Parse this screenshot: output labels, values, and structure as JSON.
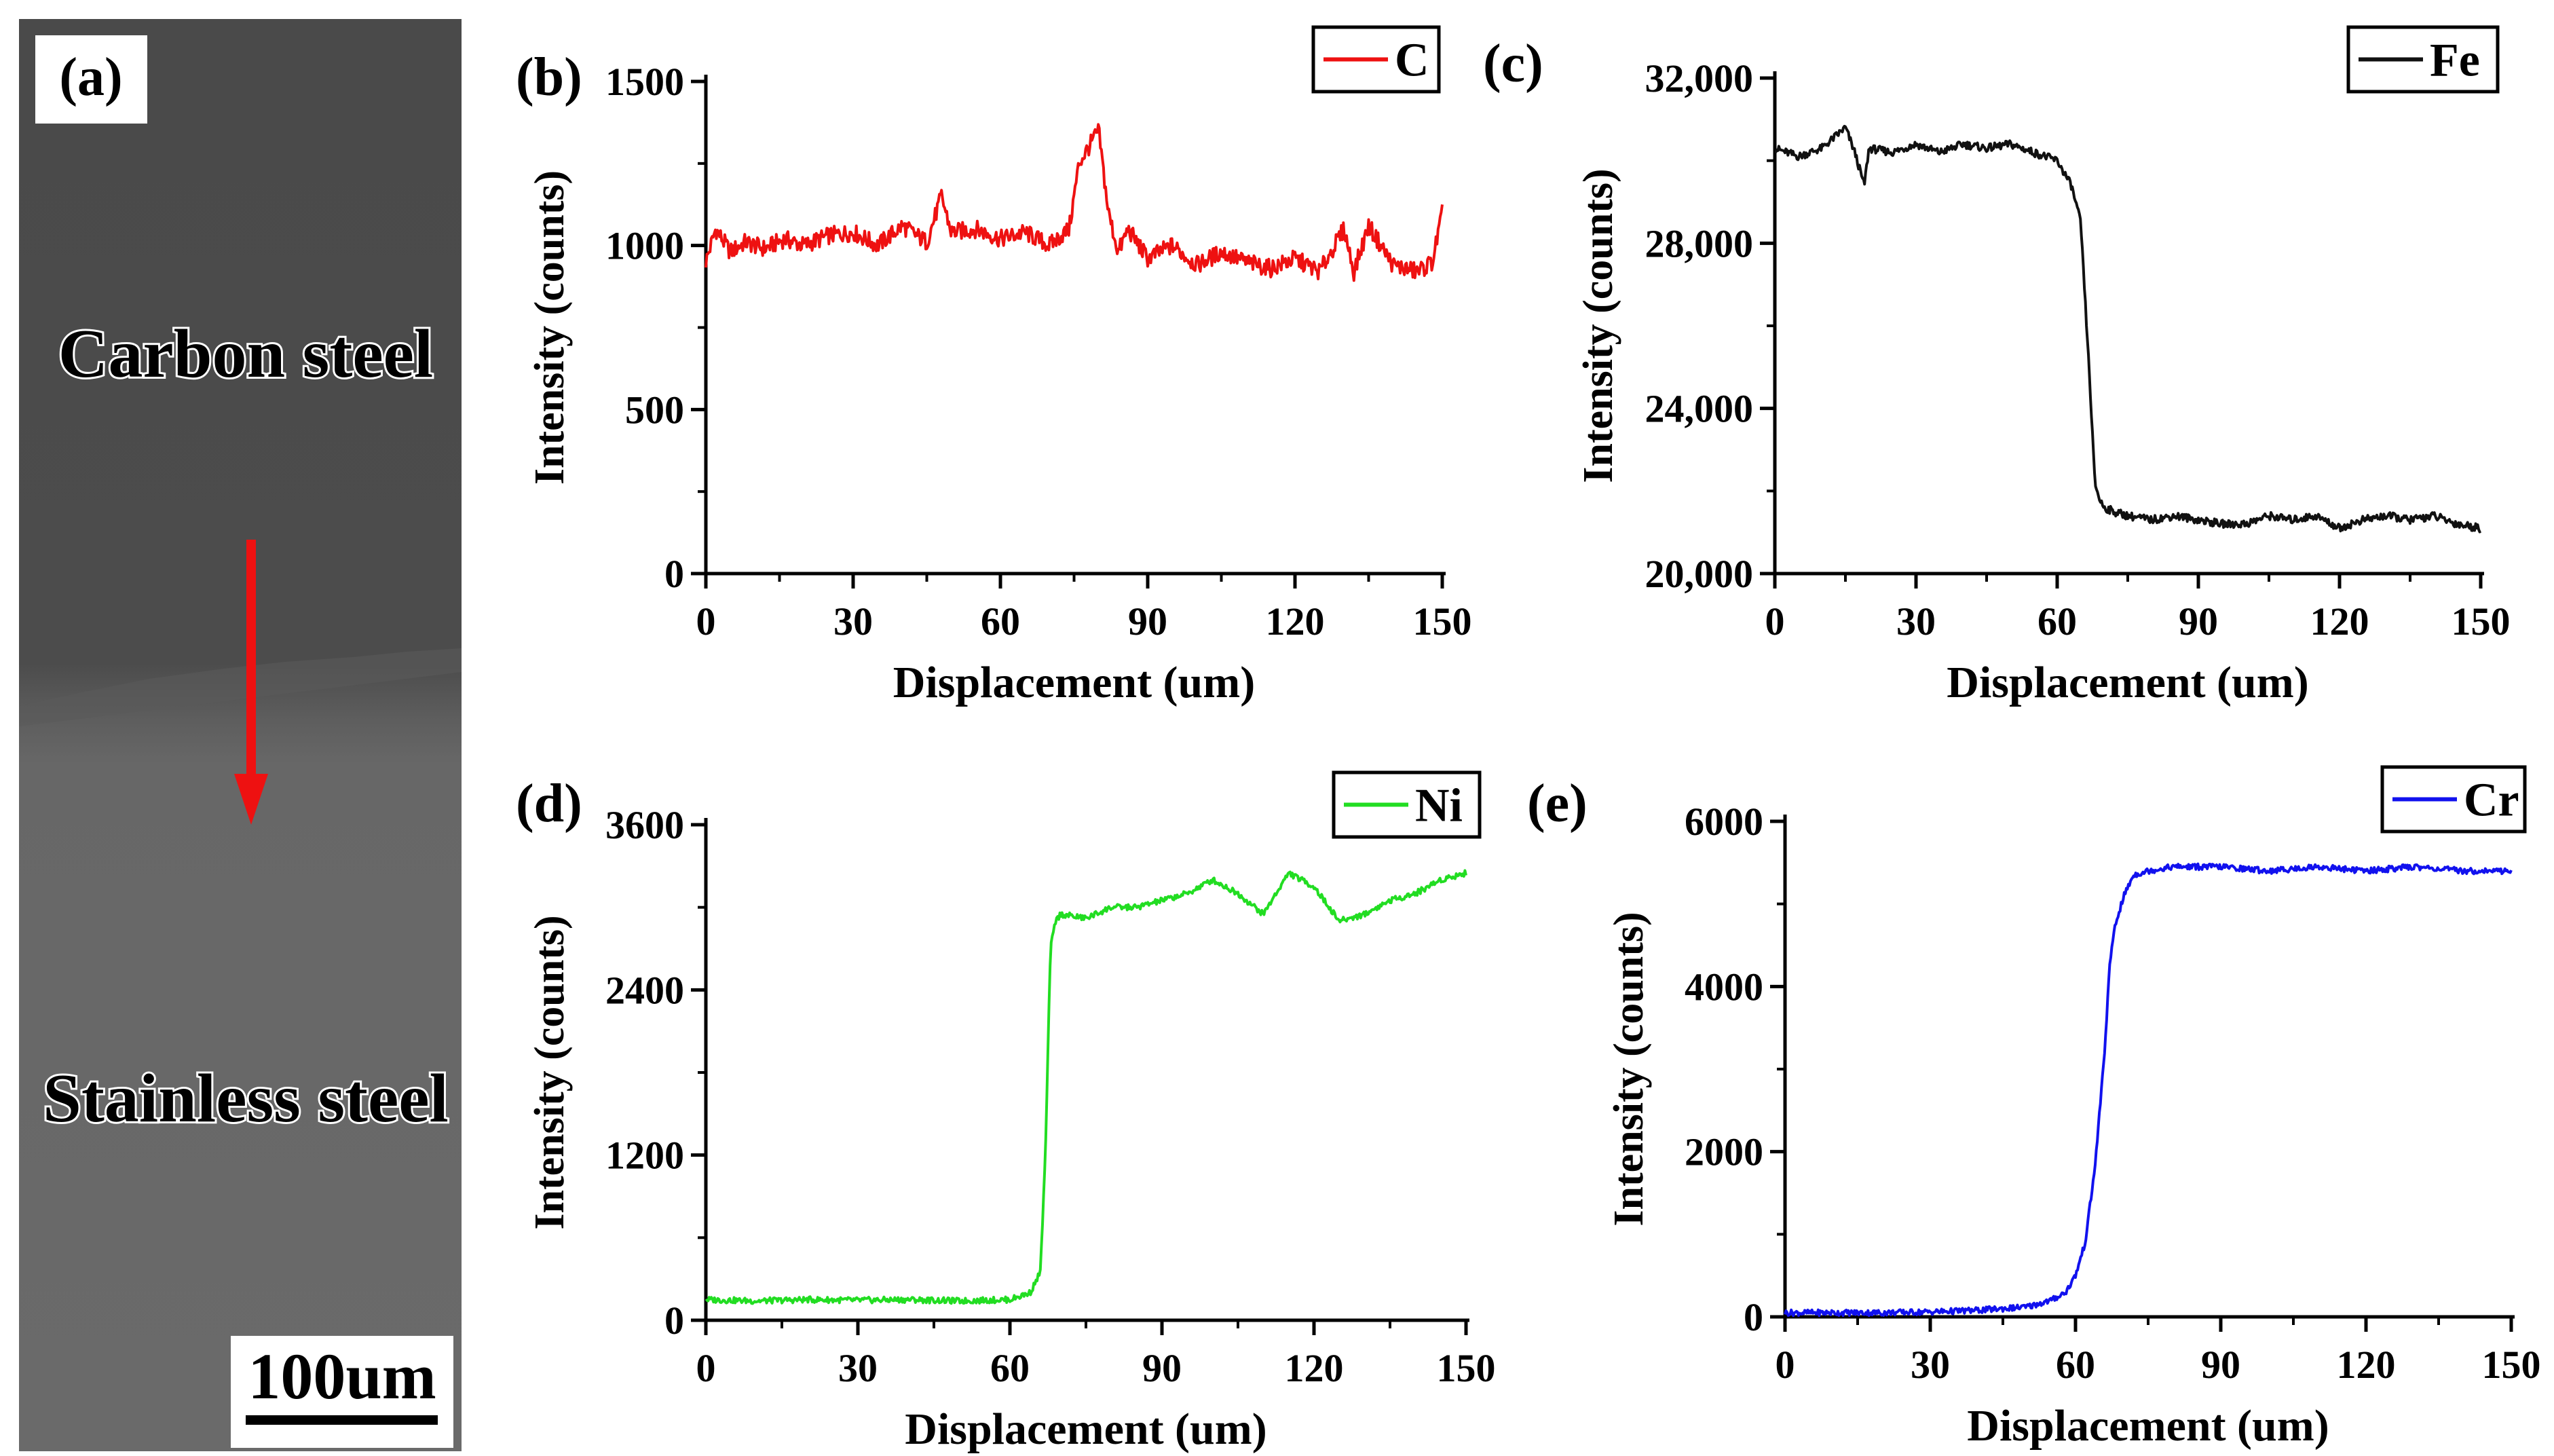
{
  "panel_a": {
    "label": "(a)",
    "top_region": "Carbon steel",
    "bottom_region": "Stainless steel",
    "scale_bar": "100um",
    "arrow_color": "#ee1111"
  },
  "chart_data": [
    {
      "id": "b",
      "panel_label": "(b)",
      "type": "line",
      "legend": "C",
      "color": "#ee1111",
      "xlabel": "Displacement (um)",
      "ylabel": "Intensity (counts)",
      "xlim": [
        0,
        150
      ],
      "ylim": [
        0,
        1500
      ],
      "xticks": [
        0,
        30,
        60,
        90,
        120,
        150
      ],
      "yticks": [
        0,
        500,
        1000,
        1500
      ],
      "ytick_labels": [
        "0",
        "500",
        "1000",
        "1500"
      ],
      "x": [
        0,
        2,
        5,
        8,
        12,
        16,
        20,
        25,
        30,
        35,
        40,
        45,
        48,
        50,
        55,
        60,
        65,
        70,
        74,
        76,
        78,
        80,
        82,
        84,
        86,
        90,
        95,
        100,
        105,
        110,
        115,
        120,
        125,
        130,
        132,
        135,
        140,
        145,
        148,
        150
      ],
      "values": [
        950,
        1050,
        980,
        1010,
        990,
        1020,
        1000,
        1030,
        1040,
        1000,
        1060,
        1010,
        1150,
        1040,
        1050,
        1020,
        1040,
        1000,
        1050,
        1250,
        1300,
        1350,
        1100,
        980,
        1050,
        960,
        1000,
        940,
        980,
        950,
        930,
        960,
        920,
        1050,
        920,
        1060,
        940,
        920,
        950,
        1100
      ]
    },
    {
      "id": "c",
      "panel_label": "(c)",
      "type": "line",
      "legend": "Fe",
      "color": "#111111",
      "xlabel": "Displacement (um)",
      "ylabel": "Intensity (counts)",
      "xlim": [
        0,
        150
      ],
      "ylim": [
        20000,
        32000
      ],
      "xticks": [
        0,
        30,
        60,
        90,
        120,
        150
      ],
      "yticks": [
        20000,
        24000,
        28000,
        32000
      ],
      "ytick_labels": [
        "20,000",
        "24,000",
        "28,000",
        "32,000"
      ],
      "x": [
        0,
        5,
        10,
        15,
        17,
        19,
        20,
        25,
        30,
        35,
        40,
        45,
        50,
        55,
        60,
        63,
        65,
        67,
        68,
        69,
        70,
        72,
        75,
        80,
        85,
        90,
        95,
        100,
        105,
        110,
        115,
        120,
        125,
        130,
        135,
        140,
        145,
        150
      ],
      "values": [
        30300,
        30100,
        30300,
        30800,
        30200,
        29400,
        30300,
        30200,
        30400,
        30200,
        30400,
        30300,
        30400,
        30200,
        30000,
        29400,
        28500,
        24500,
        22200,
        21800,
        21600,
        21500,
        21400,
        21300,
        21400,
        21300,
        21200,
        21200,
        21400,
        21300,
        21400,
        21100,
        21300,
        21400,
        21300,
        21400,
        21200,
        21100
      ]
    },
    {
      "id": "d",
      "panel_label": "(d)",
      "type": "line",
      "legend": "Ni",
      "color": "#22dd22",
      "xlabel": "Displacement (um)",
      "ylabel": "Intensity (counts)",
      "xlim": [
        0,
        150
      ],
      "ylim": [
        0,
        3600
      ],
      "xticks": [
        0,
        30,
        60,
        90,
        120,
        150
      ],
      "yticks": [
        0,
        1200,
        2400,
        3600
      ],
      "ytick_labels": [
        "0",
        "1200",
        "2400",
        "3600"
      ],
      "x": [
        0,
        10,
        20,
        30,
        40,
        50,
        60,
        64,
        66,
        67,
        68,
        69,
        70,
        75,
        80,
        85,
        90,
        95,
        100,
        105,
        110,
        115,
        120,
        125,
        130,
        135,
        140,
        145,
        150
      ],
      "values": [
        150,
        140,
        150,
        145,
        150,
        140,
        150,
        200,
        350,
        1200,
        2700,
        2900,
        2950,
        2920,
        3000,
        3000,
        3050,
        3100,
        3200,
        3100,
        2950,
        3250,
        3150,
        2900,
        2950,
        3050,
        3100,
        3200,
        3250
      ]
    },
    {
      "id": "e",
      "panel_label": "(e)",
      "type": "line",
      "legend": "Cr",
      "color": "#1111ee",
      "xlabel": "Displacement (um)",
      "ylabel": "Intensity (counts)",
      "xlim": [
        0,
        150
      ],
      "ylim": [
        0,
        6000
      ],
      "xticks": [
        0,
        30,
        60,
        90,
        120,
        150
      ],
      "yticks": [
        0,
        2000,
        4000,
        6000
      ],
      "ytick_labels": [
        "0",
        "2000",
        "4000",
        "6000"
      ],
      "x": [
        0,
        10,
        20,
        30,
        40,
        50,
        55,
        58,
        60,
        62,
        64,
        66,
        67,
        68,
        70,
        72,
        75,
        80,
        90,
        100,
        110,
        120,
        130,
        140,
        150
      ],
      "values": [
        50,
        50,
        50,
        60,
        80,
        120,
        200,
        300,
        500,
        900,
        1800,
        3200,
        4200,
        4700,
        5100,
        5350,
        5400,
        5450,
        5450,
        5400,
        5450,
        5400,
        5450,
        5400,
        5400
      ]
    }
  ]
}
